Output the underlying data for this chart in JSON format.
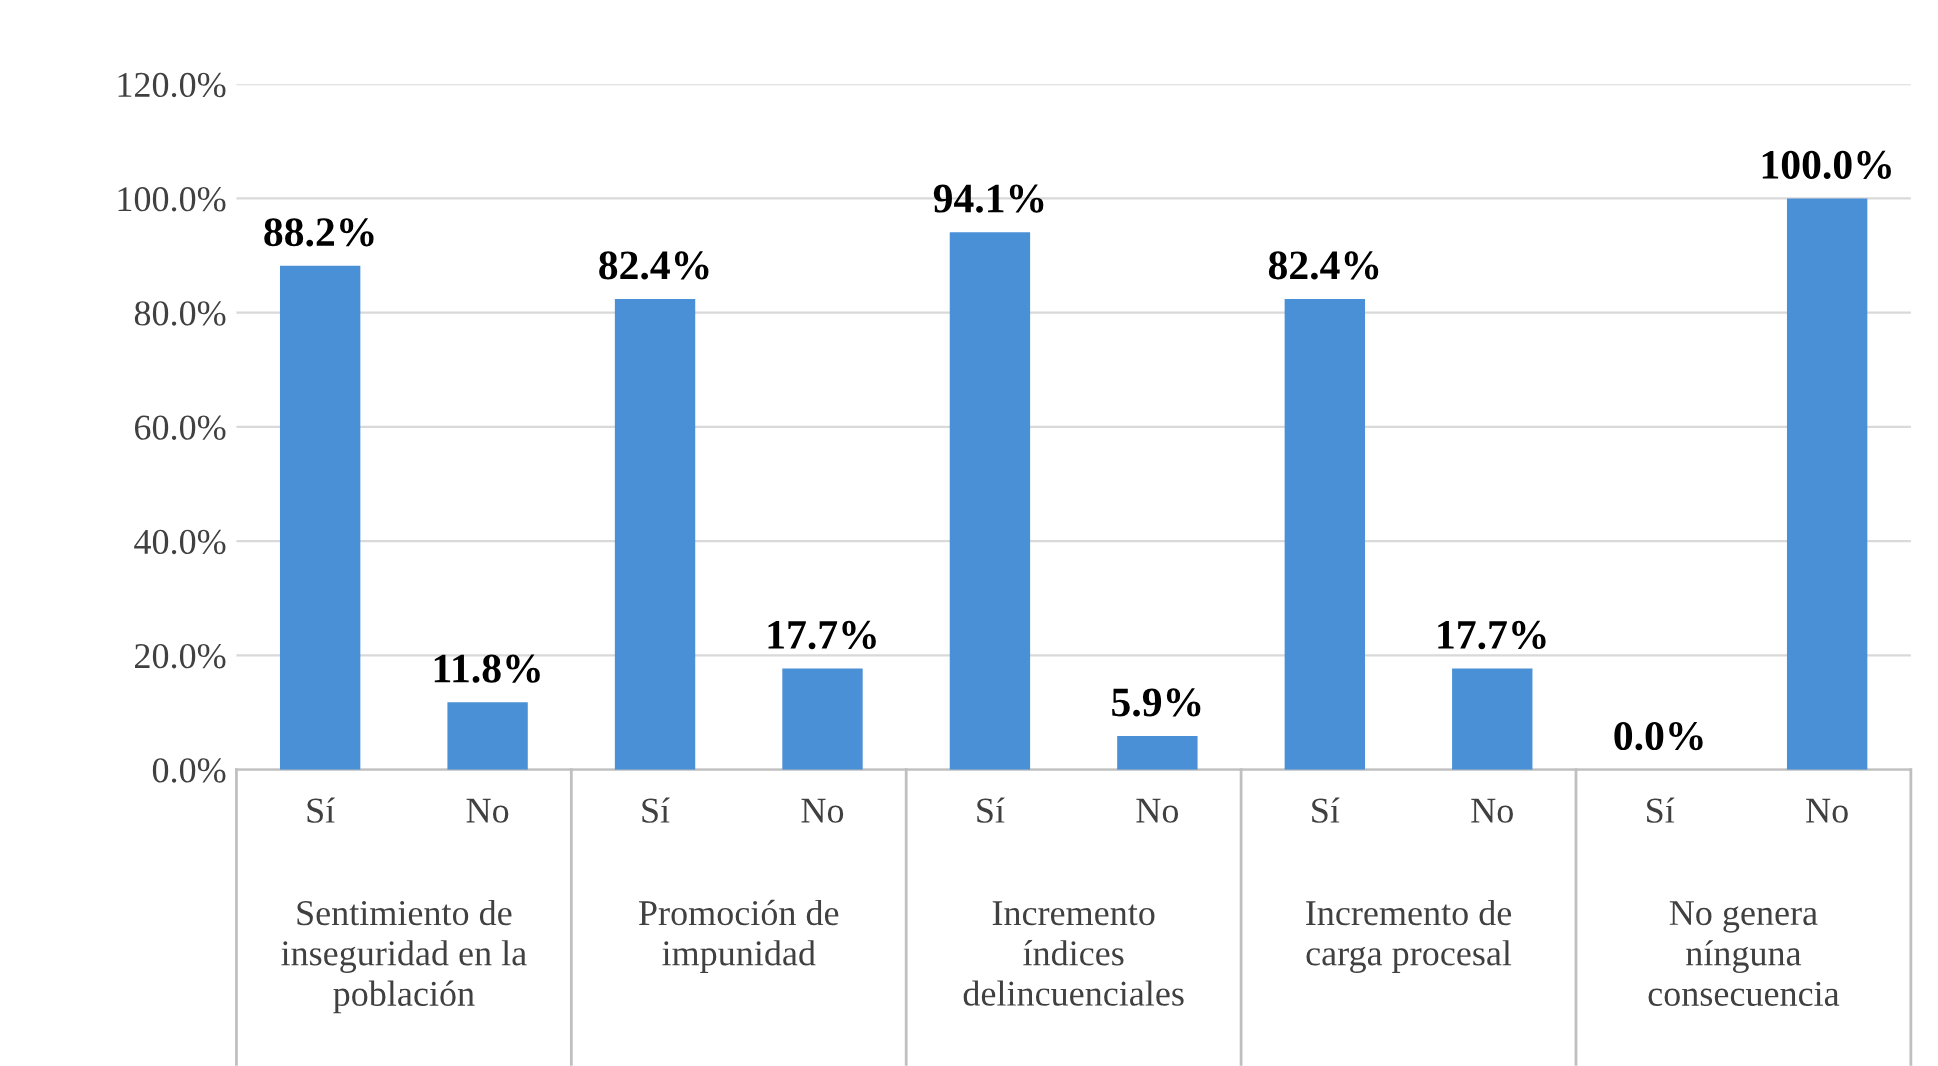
{
  "chart_data": {
    "type": "bar",
    "categories": [
      "Sí",
      "No",
      "Sí",
      "No",
      "Sí",
      "No",
      "Sí",
      "No",
      "Sí",
      "No"
    ],
    "values": [
      88.2,
      11.8,
      82.4,
      17.7,
      94.1,
      5.9,
      82.4,
      17.7,
      0.0,
      100.0
    ],
    "color": "#4a90d6",
    "annotations": [
      "Sentimiento de\ninseguridad en la\npoblación",
      "Promoción de\nimpunidad",
      "Incremento\níndices\ndelincuenciales",
      "Incremento de\ncarga procesal",
      "No genera\nnínguna\nconsecuencia"
    ],
    "value_labels": [
      "88.2%",
      "11.8%",
      "82.4%",
      "17.7%",
      "94.1%",
      "5.9%",
      "82.4%",
      "17.7%",
      "0.0%",
      "100.0%"
    ],
    "ylim": [
      0,
      120
    ],
    "yticks": [
      {
        "value": 0,
        "label": "0.0%"
      },
      {
        "value": 20,
        "label": "20.0%"
      },
      {
        "value": 40,
        "label": "40.0%"
      },
      {
        "value": 60,
        "label": "60.0%"
      },
      {
        "value": 80,
        "label": "80.0%"
      },
      {
        "value": 100,
        "label": "100.0%"
      },
      {
        "value": 120,
        "label": "120.0%"
      }
    ],
    "grid": "y",
    "legend": false
  }
}
